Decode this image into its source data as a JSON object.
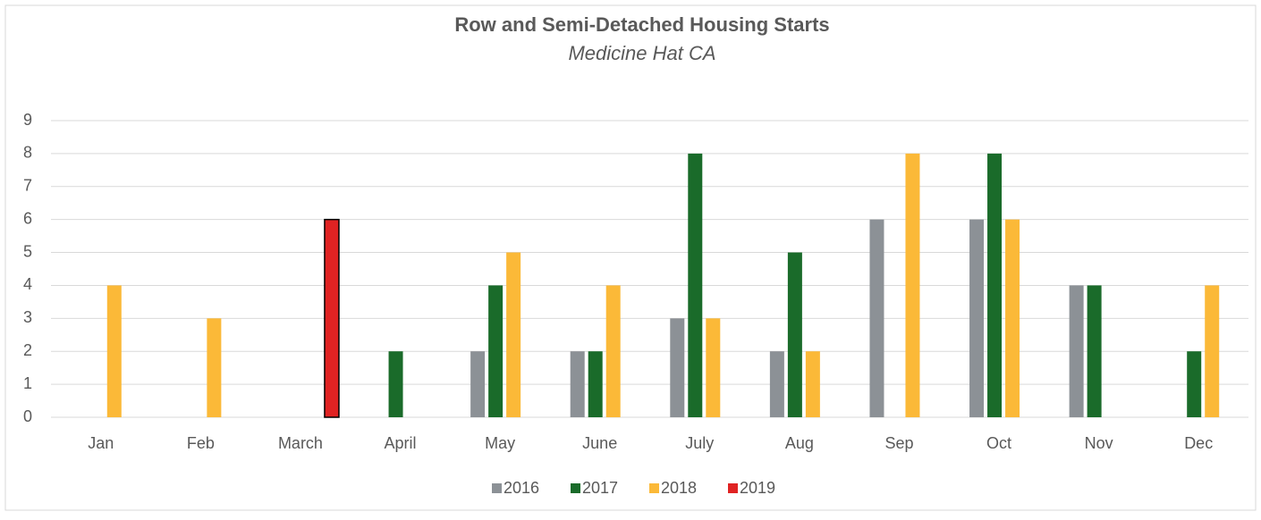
{
  "chart_data": {
    "type": "bar",
    "title": "Row and Semi-Detached Housing Starts",
    "subtitle": "Medicine Hat CA",
    "categories": [
      "Jan",
      "Feb",
      "March",
      "April",
      "May",
      "June",
      "July",
      "Aug",
      "Sep",
      "Oct",
      "Nov",
      "Dec"
    ],
    "series": [
      {
        "name": "2016",
        "color": "#8c9196",
        "values": [
          null,
          null,
          null,
          null,
          2,
          2,
          3,
          2,
          6,
          6,
          4,
          null
        ]
      },
      {
        "name": "2017",
        "color": "#1a6b2a",
        "values": [
          null,
          null,
          null,
          2,
          4,
          2,
          8,
          5,
          null,
          8,
          4,
          2
        ]
      },
      {
        "name": "2018",
        "color": "#fbb938",
        "values": [
          4,
          3,
          null,
          null,
          5,
          4,
          3,
          2,
          8,
          6,
          null,
          4
        ]
      },
      {
        "name": "2019",
        "color": "#e02323",
        "values": [
          null,
          null,
          6,
          null,
          null,
          null,
          null,
          null,
          null,
          null,
          null,
          null
        ]
      }
    ],
    "ylim": [
      0,
      9
    ],
    "yticks": [
      0,
      1,
      2,
      3,
      4,
      5,
      6,
      7,
      8,
      9
    ],
    "grid": true,
    "legend": "bottom"
  }
}
